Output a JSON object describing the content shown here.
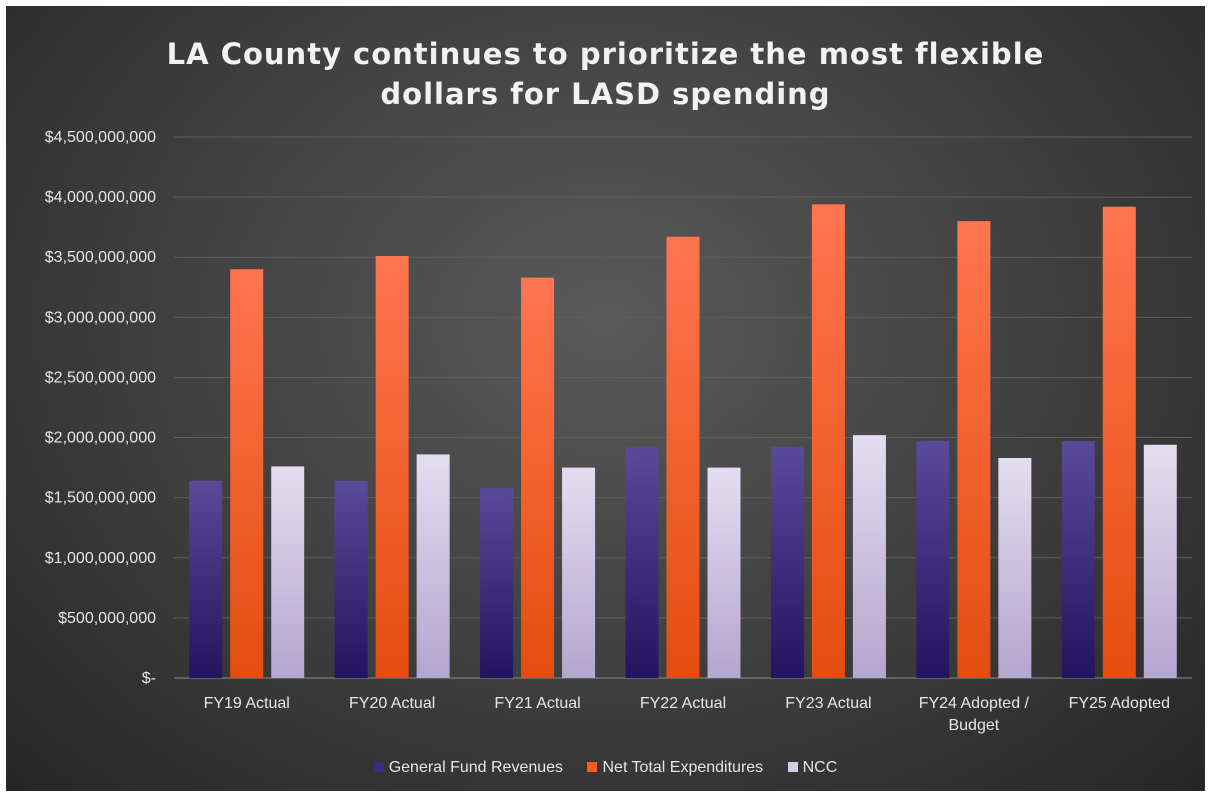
{
  "chart_data": {
    "type": "bar",
    "title": "LA County continues to prioritize the most flexible dollars for LASD spending",
    "title_lines": [
      "LA County continues to prioritize the most flexible",
      "dollars for LASD spending"
    ],
    "categories": [
      "FY19 Actual",
      "FY20 Actual",
      "FY21 Actual",
      "FY22 Actual",
      "FY23 Actual",
      "FY24 Adopted / Budget",
      "FY25 Adopted"
    ],
    "category_lines": [
      [
        "FY19 Actual"
      ],
      [
        "FY20 Actual"
      ],
      [
        "FY21 Actual"
      ],
      [
        "FY22 Actual"
      ],
      [
        "FY23 Actual"
      ],
      [
        "FY24 Adopted /",
        "Budget"
      ],
      [
        "FY25 Adopted"
      ]
    ],
    "series": [
      {
        "name": "General Fund Revenues",
        "color": "#3b2a7e",
        "values": [
          1640000000,
          1640000000,
          1580000000,
          1920000000,
          1920000000,
          1970000000,
          1970000000
        ]
      },
      {
        "name": "Net Total Expenditures",
        "color": "#ff5a1f",
        "values": [
          3400000000,
          3510000000,
          3330000000,
          3670000000,
          3940000000,
          3800000000,
          3920000000
        ]
      },
      {
        "name": "NCC",
        "color": "#d6cce8",
        "values": [
          1760000000,
          1860000000,
          1750000000,
          1750000000,
          2020000000,
          1830000000,
          1940000000
        ]
      }
    ],
    "ylim": [
      0,
      4500000000
    ],
    "yticks": [
      0,
      500000000,
      1000000000,
      1500000000,
      2000000000,
      2500000000,
      3000000000,
      3500000000,
      4000000000,
      4500000000
    ],
    "ytick_labels": [
      "$-",
      "$500,000,000",
      "$1,000,000,000",
      "$1,500,000,000",
      "$2,000,000,000",
      "$2,500,000,000",
      "$3,000,000,000",
      "$3,500,000,000",
      "$4,000,000,000",
      "$4,500,000,000"
    ],
    "grid": true,
    "legend_position": "bottom"
  }
}
